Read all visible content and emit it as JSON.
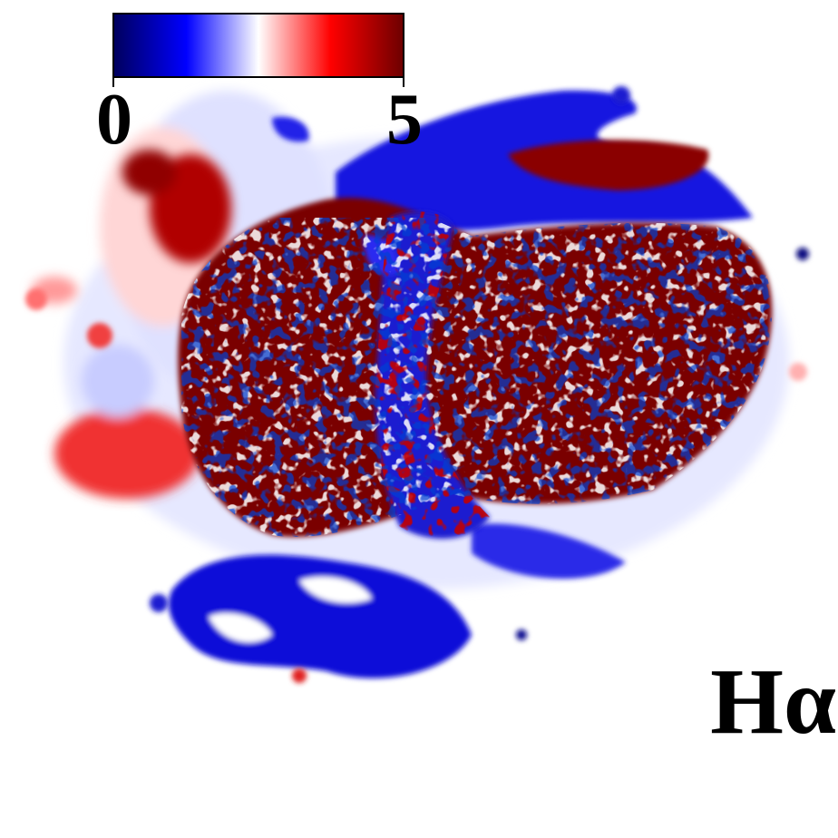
{
  "colorbar": {
    "min_label": "0",
    "max_label": "5",
    "min_value": 0,
    "max_value": 5,
    "colors": {
      "low": "#00005e",
      "mid_low": "#0000ff",
      "mid": "#ffffff",
      "mid_high": "#ff0000",
      "high": "#6e0000"
    }
  },
  "emission_line_label": "Hα"
}
